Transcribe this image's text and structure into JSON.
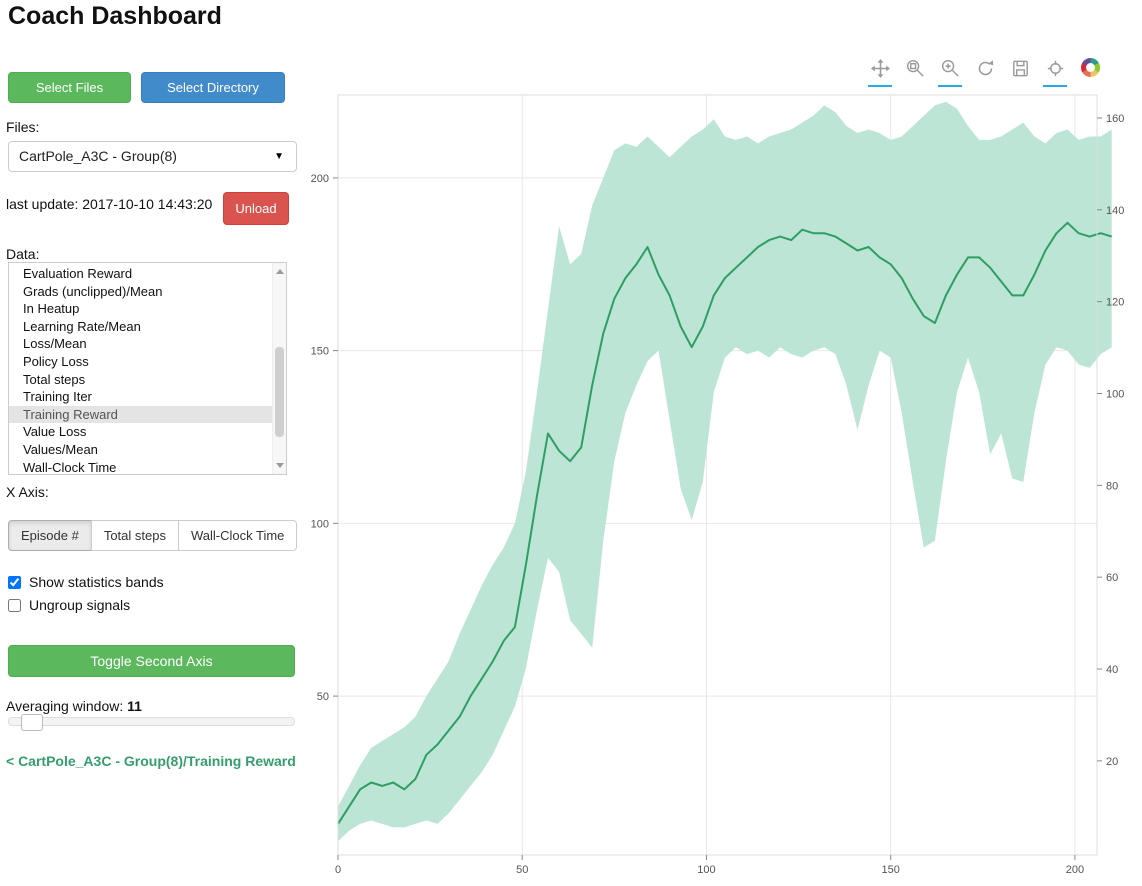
{
  "page": {
    "title": "Coach Dashboard"
  },
  "sidebar": {
    "select_files_label": "Select Files",
    "select_directory_label": "Select Directory",
    "files_label": "Files:",
    "files_selected": "CartPole_A3C - Group(8)",
    "last_update": "last update: 2017-10-10 14:43:20",
    "unload_label": "Unload",
    "data_label": "Data:",
    "data_items": [
      "Evaluation Reward",
      "Grads (unclipped)/Mean",
      "In Heatup",
      "Learning Rate/Mean",
      "Loss/Mean",
      "Policy Loss",
      "Total steps",
      "Training Iter",
      "Training Reward",
      "Value Loss",
      "Values/Mean",
      "Wall-Clock Time"
    ],
    "data_selected": "Training Reward",
    "x_axis_label": "X Axis:",
    "x_axis_options": [
      "Episode #",
      "Total steps",
      "Wall-Clock Time"
    ],
    "x_axis_selected": "Episode #",
    "checkboxes": [
      {
        "label": "Show statistics bands",
        "checked": true
      },
      {
        "label": "Ungroup signals",
        "checked": false
      }
    ],
    "toggle_second_axis_label": "Toggle Second Axis",
    "averaging_window_label": "Averaging window:",
    "averaging_window_value": "11",
    "breadcrumb": "< CartPole_A3C - Group(8)/Training Reward"
  },
  "plot_toolbar": {
    "icons": [
      "pan-icon",
      "box-zoom-icon",
      "wheel-zoom-icon",
      "reset-icon",
      "save-icon",
      "hover-icon",
      "bokeh-logo"
    ],
    "active_indices": [
      0,
      2,
      5
    ]
  },
  "chart_data": {
    "type": "line",
    "title": "",
    "xlabel": "",
    "ylabel": "",
    "xlim": [
      0,
      206
    ],
    "ylim_left": [
      4,
      224
    ],
    "ylim_right": [
      -0.5,
      165
    ],
    "x_ticks": [
      0,
      50,
      100,
      150,
      200
    ],
    "y_ticks_left": [
      50,
      100,
      150,
      200
    ],
    "y_ticks_right": [
      20,
      40,
      60,
      80,
      100,
      120,
      140,
      160
    ],
    "grid": true,
    "line_color": "#2f9e63",
    "band_color": "#b5e2d1",
    "x": [
      0,
      3,
      6,
      9,
      12,
      15,
      18,
      21,
      24,
      27,
      30,
      33,
      36,
      39,
      42,
      45,
      48,
      51,
      54,
      57,
      60,
      63,
      66,
      69,
      72,
      75,
      78,
      81,
      84,
      87,
      90,
      93,
      96,
      99,
      102,
      105,
      108,
      111,
      114,
      117,
      120,
      123,
      126,
      129,
      132,
      135,
      138,
      141,
      144,
      147,
      150,
      153,
      156,
      159,
      162,
      165,
      168,
      171,
      174,
      177,
      180,
      183,
      186,
      189,
      192,
      195,
      198,
      201,
      204,
      207,
      210
    ],
    "series": [
      {
        "name": "Training Reward (mean)",
        "values": [
          13,
          18,
          23,
          25,
          24,
          25,
          23,
          26,
          33,
          36,
          40,
          44,
          50,
          55,
          60,
          66,
          70,
          88,
          108,
          126,
          121,
          118,
          122,
          140,
          155,
          165,
          171,
          175,
          180,
          172,
          166,
          157,
          151,
          157,
          166,
          171,
          174,
          177,
          180,
          182,
          183,
          182,
          185,
          184,
          184,
          183,
          181,
          179,
          180,
          177,
          175,
          171,
          165,
          160,
          158,
          166,
          172,
          177,
          177,
          174,
          170,
          166,
          166,
          172,
          179,
          184,
          187,
          184,
          183,
          184,
          183
        ]
      }
    ],
    "band": {
      "name": "statistics band",
      "upper": [
        18,
        24,
        30,
        35,
        37,
        39,
        41,
        44,
        50,
        55,
        60,
        68,
        75,
        82,
        88,
        93,
        100,
        115,
        138,
        162,
        186,
        175,
        178,
        192,
        200,
        208,
        210,
        209,
        212,
        209,
        206,
        209,
        212,
        214,
        217,
        212,
        211,
        212,
        210,
        212,
        213,
        214,
        216,
        218,
        221,
        219,
        215,
        213,
        214,
        213,
        211,
        212,
        215,
        218,
        221,
        222,
        220,
        215,
        211,
        211,
        212,
        214,
        216,
        212,
        210,
        213,
        214,
        211,
        212,
        212,
        214
      ],
      "lower": [
        8,
        11,
        13,
        14,
        13,
        12,
        12,
        13,
        14,
        13,
        16,
        20,
        24,
        28,
        33,
        40,
        47,
        58,
        75,
        90,
        86,
        72,
        68,
        64,
        95,
        118,
        132,
        140,
        147,
        150,
        130,
        110,
        101,
        112,
        138,
        148,
        151,
        149,
        150,
        148,
        151,
        149,
        148,
        150,
        151,
        149,
        140,
        127,
        140,
        150,
        148,
        132,
        112,
        93,
        95,
        118,
        138,
        148,
        138,
        120,
        126,
        113,
        112,
        132,
        146,
        151,
        150,
        146,
        145,
        149,
        151
      ]
    }
  }
}
